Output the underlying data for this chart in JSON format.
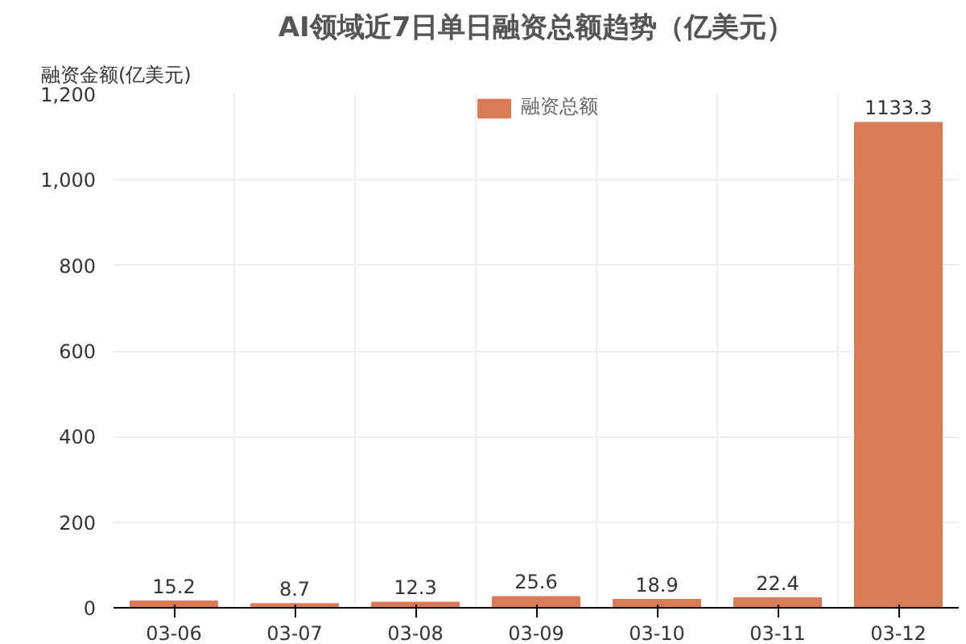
{
  "chart_data": {
    "type": "bar",
    "title": "AI领域近7日单日融资总额趋势（亿美元）",
    "ylabel": "融资金额(亿美元)",
    "categories": [
      "03-06",
      "03-07",
      "03-08",
      "03-09",
      "03-10",
      "03-11",
      "03-12"
    ],
    "series": [
      {
        "name": "融资总额",
        "color": "#d97b57",
        "values": [
          15.2,
          8.7,
          12.3,
          25.6,
          18.9,
          22.4,
          1133.3
        ]
      }
    ],
    "ylim": [
      0,
      1200
    ],
    "yticks": [
      0,
      200,
      400,
      600,
      800,
      {
        "value": 1000,
        "label": "1,000"
      },
      {
        "value": 1200,
        "label": "1,200"
      }
    ],
    "grid": true,
    "legend": "top",
    "data_labels": true
  }
}
